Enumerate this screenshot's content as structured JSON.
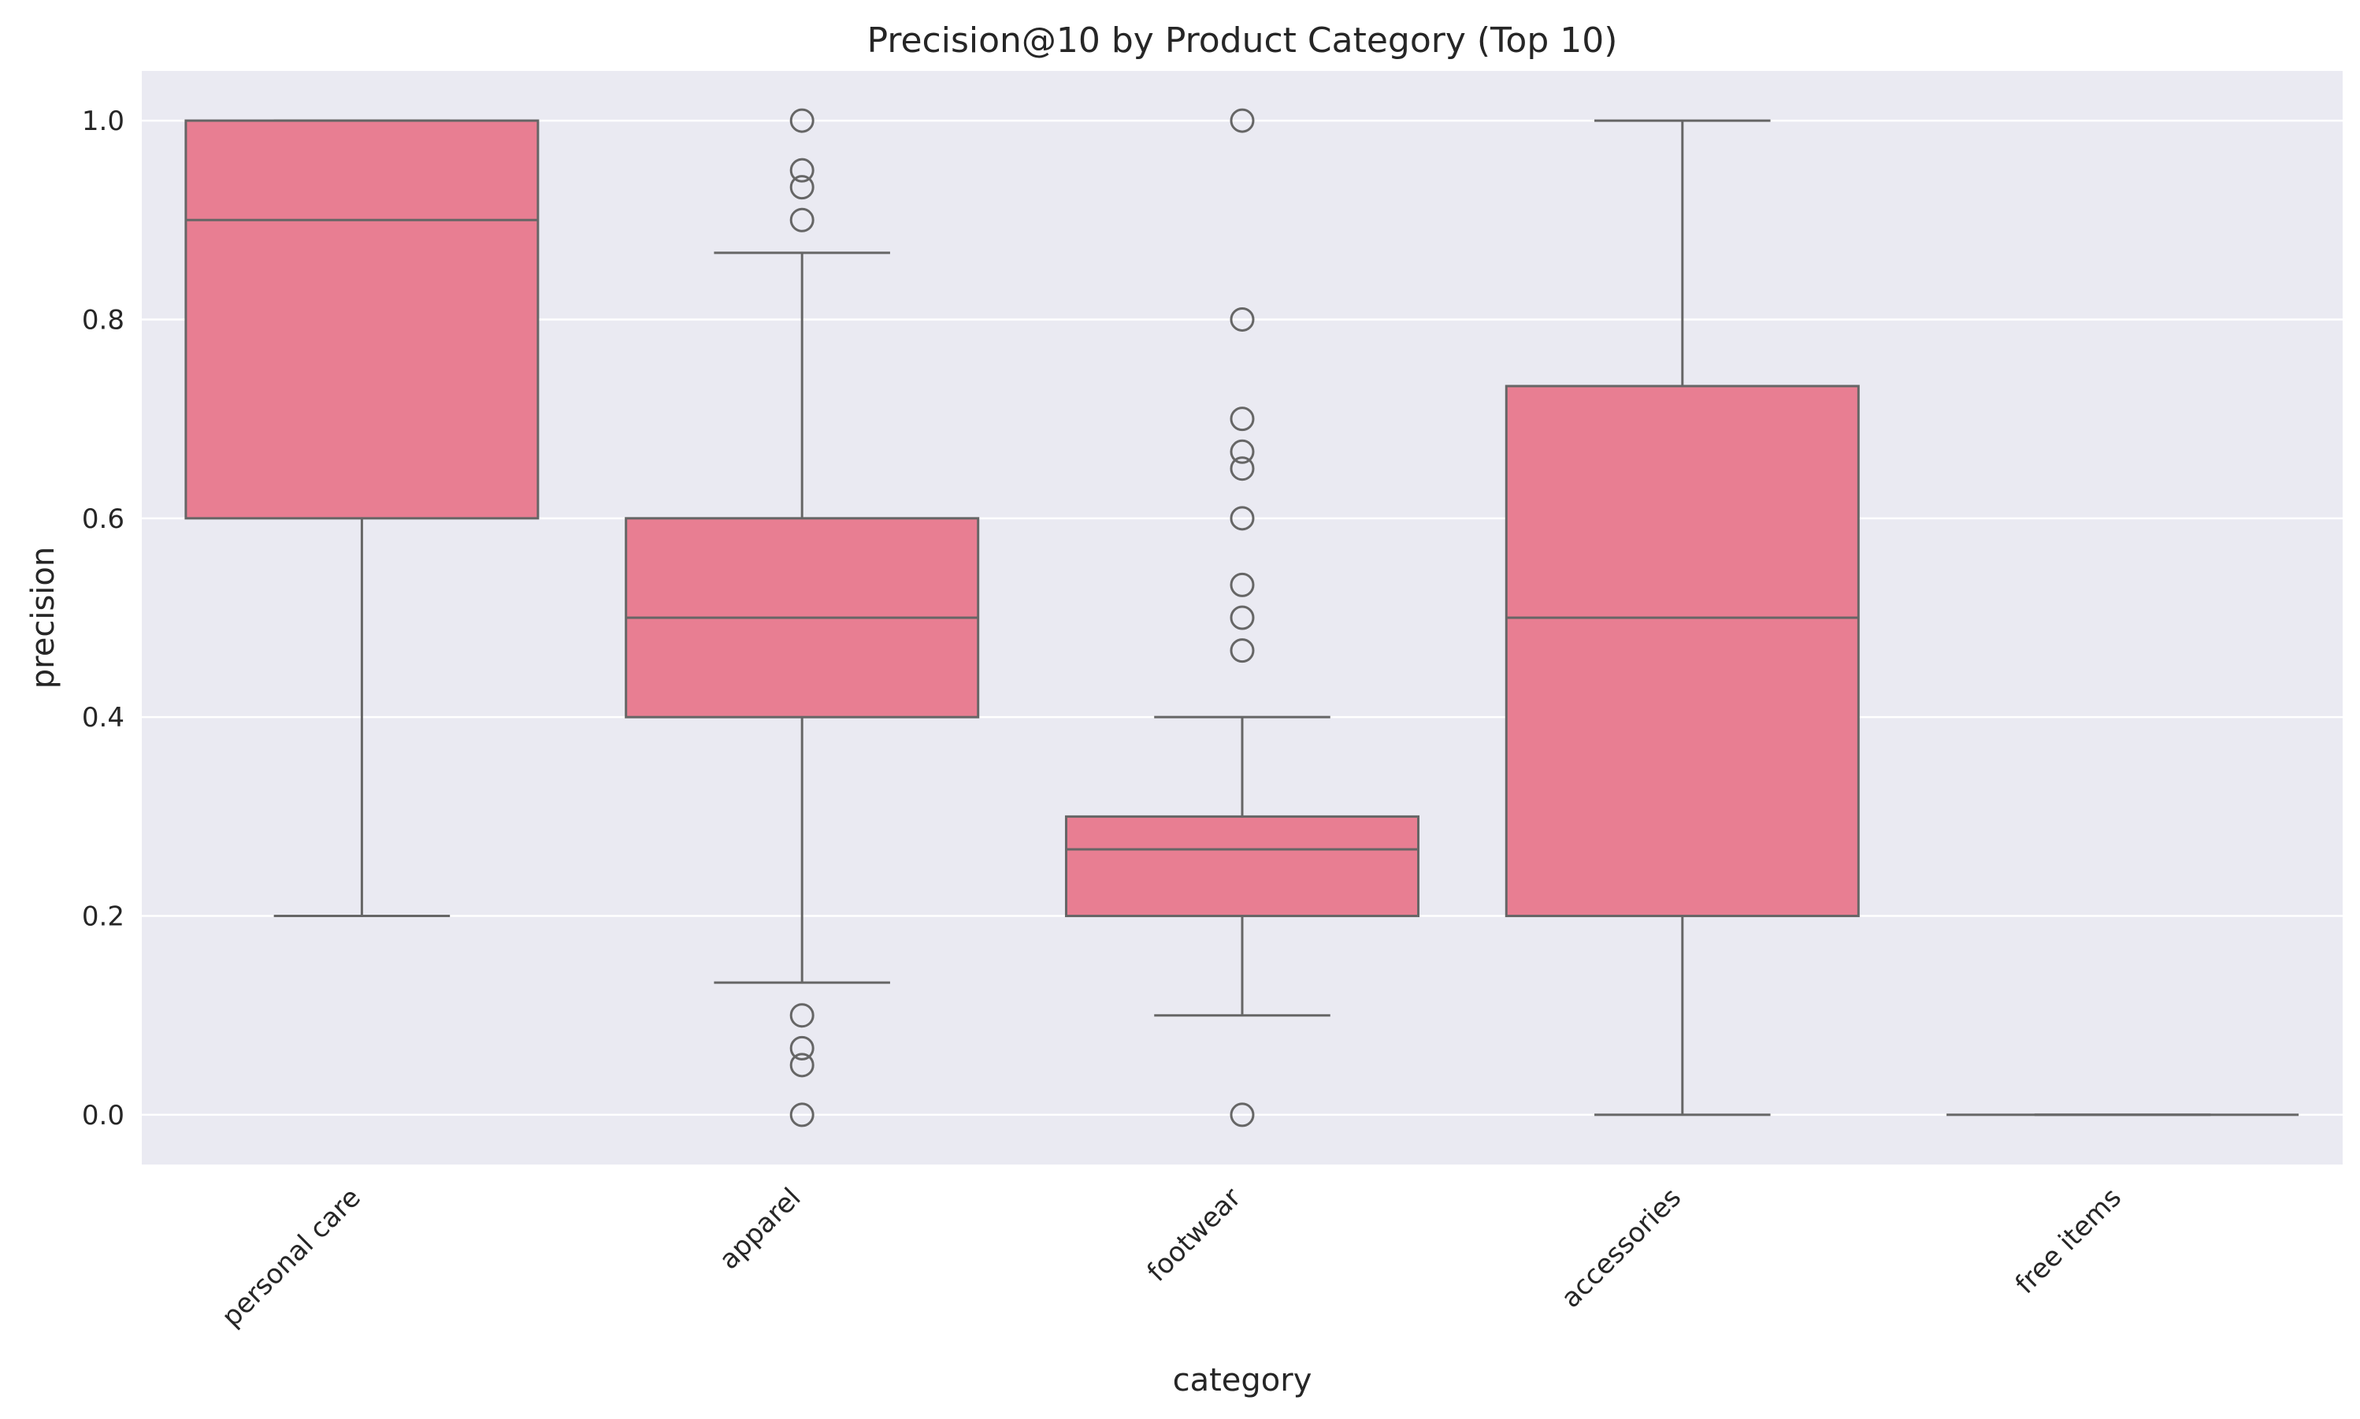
{
  "chart_data": {
    "type": "box",
    "title": "Precision@10 by Product Category (Top 10)",
    "xlabel": "category",
    "ylabel": "precision",
    "ylim": [
      -0.05,
      1.05
    ],
    "yticks": [
      "0.0",
      "0.2",
      "0.4",
      "0.6",
      "0.8",
      "1.0"
    ],
    "ytick_values": [
      0.0,
      0.2,
      0.4,
      0.6,
      0.8,
      1.0
    ],
    "grid": true,
    "colors": {
      "box_fill": "#e87e92",
      "box_line": "#666666",
      "background": "#eaeaf2",
      "grid": "#ffffff"
    },
    "categories": [
      "personal care",
      "apparel",
      "footwear",
      "accessories",
      "free items"
    ],
    "boxes": [
      {
        "category": "personal care",
        "whisker_low": 0.2,
        "q1": 0.6,
        "median": 0.9,
        "q3": 1.0,
        "whisker_high": 1.0,
        "outliers": []
      },
      {
        "category": "apparel",
        "whisker_low": 0.133,
        "q1": 0.4,
        "median": 0.5,
        "q3": 0.6,
        "whisker_high": 0.867,
        "outliers": [
          1.0,
          0.95,
          0.933,
          0.9,
          0.1,
          0.067,
          0.05,
          0.0
        ]
      },
      {
        "category": "footwear",
        "whisker_low": 0.1,
        "q1": 0.2,
        "median": 0.267,
        "q3": 0.3,
        "whisker_high": 0.4,
        "outliers": [
          1.0,
          0.8,
          0.7,
          0.667,
          0.65,
          0.6,
          0.533,
          0.5,
          0.467,
          0.0
        ]
      },
      {
        "category": "accessories",
        "whisker_low": 0.0,
        "q1": 0.2,
        "median": 0.5,
        "q3": 0.733,
        "whisker_high": 1.0,
        "outliers": []
      },
      {
        "category": "free items",
        "whisker_low": 0.0,
        "q1": 0.0,
        "median": 0.0,
        "q3": 0.0,
        "whisker_high": 0.0,
        "outliers": []
      }
    ]
  }
}
